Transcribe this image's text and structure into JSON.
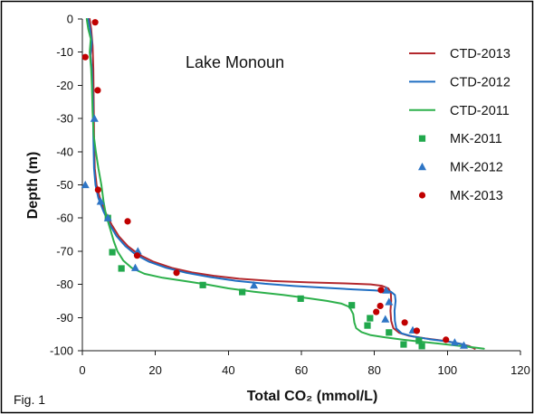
{
  "figure": {
    "label": "Fig. 1"
  },
  "chart_data": {
    "type": "scatter",
    "title": "Lake Monoun",
    "xlabel": "Total CO₂ (mmol/L)",
    "ylabel": "Depth (m)",
    "xlim": [
      0,
      120
    ],
    "ylim": [
      -100,
      0
    ],
    "xticks": [
      0,
      20,
      40,
      60,
      80,
      100,
      120
    ],
    "yticks": [
      0,
      -10,
      -20,
      -30,
      -40,
      -50,
      -60,
      -70,
      -80,
      -90,
      -100
    ],
    "grid": false,
    "legend_position": "top-right",
    "series": [
      {
        "name": "CTD-2013",
        "style": "line",
        "color": "#B3282D",
        "points": [
          [
            2.0,
            0
          ],
          [
            2.4,
            -3
          ],
          [
            2.8,
            -8
          ],
          [
            3.0,
            -15
          ],
          [
            3.1,
            -25
          ],
          [
            3.2,
            -35
          ],
          [
            3.4,
            -45
          ],
          [
            3.9,
            -50
          ],
          [
            4.8,
            -54
          ],
          [
            6.2,
            -58
          ],
          [
            8.0,
            -62
          ],
          [
            10.0,
            -65.5
          ],
          [
            12.5,
            -68.5
          ],
          [
            15.5,
            -71
          ],
          [
            19.5,
            -73.2
          ],
          [
            24.5,
            -75
          ],
          [
            30,
            -76.4
          ],
          [
            36,
            -77.4
          ],
          [
            43,
            -78.3
          ],
          [
            52,
            -79
          ],
          [
            62,
            -79.4
          ],
          [
            72,
            -79.7
          ],
          [
            79,
            -80
          ],
          [
            82,
            -80.4
          ],
          [
            83.8,
            -81.2
          ],
          [
            84.5,
            -82.5
          ],
          [
            84.6,
            -85
          ],
          [
            84.4,
            -88
          ],
          [
            84.6,
            -91
          ],
          [
            85.2,
            -93.2
          ],
          [
            86.8,
            -94.6
          ],
          [
            89.5,
            -95.5
          ],
          [
            94,
            -96.3
          ],
          [
            99,
            -97
          ],
          [
            103,
            -97.8
          ],
          [
            106,
            -98.6
          ],
          [
            107.5,
            -99.4
          ]
        ]
      },
      {
        "name": "CTD-2012",
        "style": "line",
        "color": "#1F6EC2",
        "points": [
          [
            1.6,
            0
          ],
          [
            2.1,
            -3
          ],
          [
            2.6,
            -7
          ],
          [
            2.2,
            -11
          ],
          [
            2.6,
            -15
          ],
          [
            2.9,
            -25
          ],
          [
            3.0,
            -35
          ],
          [
            3.2,
            -45
          ],
          [
            3.6,
            -50
          ],
          [
            4.4,
            -54
          ],
          [
            5.8,
            -58
          ],
          [
            7.5,
            -62
          ],
          [
            9.4,
            -65.5
          ],
          [
            11.8,
            -68.5
          ],
          [
            14.6,
            -71
          ],
          [
            18.3,
            -73.2
          ],
          [
            23,
            -75
          ],
          [
            28.5,
            -76.5
          ],
          [
            35,
            -77.8
          ],
          [
            42,
            -78.9
          ],
          [
            50,
            -79.8
          ],
          [
            58,
            -80.5
          ],
          [
            66,
            -81
          ],
          [
            74,
            -81.5
          ],
          [
            80,
            -81.8
          ],
          [
            84.5,
            -82.2
          ],
          [
            85.6,
            -83.2
          ],
          [
            85.8,
            -85
          ],
          [
            85.5,
            -88
          ],
          [
            85.6,
            -91
          ],
          [
            86,
            -93.3
          ],
          [
            87.5,
            -94.8
          ],
          [
            90.5,
            -95.7
          ],
          [
            95,
            -96.5
          ],
          [
            100,
            -97.2
          ],
          [
            104,
            -98
          ],
          [
            106.5,
            -99
          ]
        ]
      },
      {
        "name": "CTD-2011",
        "style": "line",
        "color": "#2DB04B",
        "points": [
          [
            1.2,
            0
          ],
          [
            1.6,
            -3
          ],
          [
            2.3,
            -6
          ],
          [
            2.0,
            -10
          ],
          [
            2.4,
            -15
          ],
          [
            2.6,
            -20
          ],
          [
            2.8,
            -28
          ],
          [
            3.1,
            -35
          ],
          [
            3.7,
            -40
          ],
          [
            4.4,
            -45
          ],
          [
            5.2,
            -50
          ],
          [
            5.8,
            -55
          ],
          [
            6.3,
            -58
          ],
          [
            7.0,
            -61
          ],
          [
            7.8,
            -64
          ],
          [
            8.6,
            -67
          ],
          [
            9.6,
            -70
          ],
          [
            11.2,
            -72.8
          ],
          [
            13.5,
            -75
          ],
          [
            17,
            -76.8
          ],
          [
            22,
            -78
          ],
          [
            28,
            -79
          ],
          [
            34,
            -80
          ],
          [
            40,
            -81.2
          ],
          [
            47,
            -82.2
          ],
          [
            55,
            -83.2
          ],
          [
            62,
            -84.2
          ],
          [
            67,
            -85
          ],
          [
            71,
            -85.8
          ],
          [
            73.2,
            -86.8
          ],
          [
            74.2,
            -89
          ],
          [
            74.5,
            -91.5
          ],
          [
            75,
            -93.2
          ],
          [
            76.5,
            -94.4
          ],
          [
            79,
            -95.3
          ],
          [
            83,
            -96
          ],
          [
            88,
            -96.7
          ],
          [
            93,
            -97.3
          ],
          [
            98,
            -97.9
          ],
          [
            103,
            -98.5
          ],
          [
            107,
            -99
          ],
          [
            110,
            -99.4
          ]
        ]
      },
      {
        "name": "MK-2011",
        "style": "marker",
        "marker": "square",
        "color": "#21A84C",
        "points": [
          [
            7,
            -60
          ],
          [
            8.2,
            -70.3
          ],
          [
            10.7,
            -75.2
          ],
          [
            33,
            -80.2
          ],
          [
            43.8,
            -82.3
          ],
          [
            59.8,
            -84.3
          ],
          [
            73.8,
            -86.3
          ],
          [
            78.8,
            -90.2
          ],
          [
            78.1,
            -92.4
          ],
          [
            84,
            -94.5
          ],
          [
            88,
            -98.1
          ],
          [
            92.2,
            -97
          ],
          [
            93,
            -98.6
          ]
        ]
      },
      {
        "name": "MK-2012",
        "style": "marker",
        "marker": "triangle",
        "color": "#2E75C5",
        "points": [
          [
            3.3,
            -30
          ],
          [
            0.8,
            -50
          ],
          [
            5,
            -55
          ],
          [
            7,
            -60
          ],
          [
            15.2,
            -70
          ],
          [
            14.5,
            -75
          ],
          [
            47,
            -80.3
          ],
          [
            83.2,
            -81.8
          ],
          [
            84,
            -85.3
          ],
          [
            83,
            -90.5
          ],
          [
            90.5,
            -93.8
          ],
          [
            102,
            -97.5
          ],
          [
            104.5,
            -98.4
          ]
        ]
      },
      {
        "name": "MK-2013",
        "style": "marker",
        "marker": "circle",
        "color": "#C00000",
        "points": [
          [
            3.5,
            -1
          ],
          [
            0.8,
            -11.5
          ],
          [
            4.2,
            -21.5
          ],
          [
            4.3,
            -51.5
          ],
          [
            12.4,
            -61
          ],
          [
            15,
            -71.3
          ],
          [
            25.8,
            -76.5
          ],
          [
            81.8,
            -81.7
          ],
          [
            81.6,
            -86.5
          ],
          [
            80.5,
            -88.3
          ],
          [
            88.3,
            -91.5
          ],
          [
            91.6,
            -94
          ],
          [
            99.6,
            -96.7
          ]
        ]
      }
    ]
  }
}
